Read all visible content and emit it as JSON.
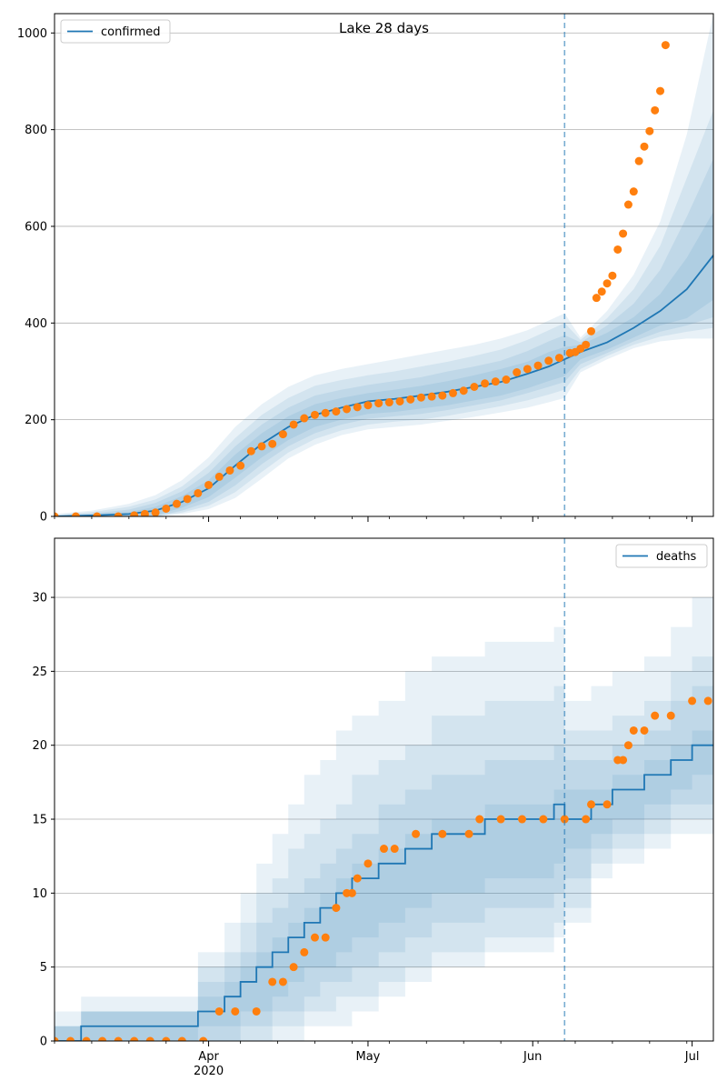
{
  "chart_data": [
    {
      "type": "line",
      "title": "Lake 28 days",
      "xlabel": "",
      "ylabel": "",
      "x_range": [
        "2020-03-03",
        "2020-07-05"
      ],
      "ylim": [
        0,
        1040
      ],
      "y_ticks": [
        0,
        200,
        400,
        600,
        800,
        1000
      ],
      "x_ticks": [
        {
          "date": "2020-04-01",
          "label": "Apr",
          "sublabel": "2020"
        },
        {
          "date": "2020-05-01",
          "label": "May",
          "sublabel": ""
        },
        {
          "date": "2020-06-01",
          "label": "Jun",
          "sublabel": ""
        },
        {
          "date": "2020-07-01",
          "label": "Jul",
          "sublabel": ""
        }
      ],
      "grid": "horizontal",
      "legend": "top-left",
      "colors": {
        "model": "#1f77b4",
        "observed": "#ff7f0e"
      },
      "forecast_start": "2020-06-07",
      "model": {
        "name": "confirmed",
        "dates": [
          "2020-03-03",
          "2020-03-10",
          "2020-03-17",
          "2020-03-22",
          "2020-03-27",
          "2020-04-01",
          "2020-04-06",
          "2020-04-11",
          "2020-04-16",
          "2020-04-21",
          "2020-04-26",
          "2020-05-01",
          "2020-05-06",
          "2020-05-11",
          "2020-05-16",
          "2020-05-21",
          "2020-05-26",
          "2020-05-31",
          "2020-06-04",
          "2020-06-07",
          "2020-06-10",
          "2020-06-15",
          "2020-06-20",
          "2020-06-25",
          "2020-06-30",
          "2020-07-05"
        ],
        "values": [
          0,
          2,
          5,
          12,
          30,
          58,
          105,
          150,
          185,
          210,
          225,
          238,
          243,
          250,
          258,
          268,
          278,
          295,
          310,
          325,
          340,
          360,
          390,
          425,
          470,
          540
        ],
        "bands": [
          {
            "lower": [
              0,
              0,
              0,
              2,
              18,
              40,
              80,
              122,
              158,
              185,
              200,
              212,
              216,
              223,
              230,
              240,
              250,
              265,
              280,
              290,
              325,
              345,
              370,
              395,
              410,
              448
            ],
            "upper": [
              1,
              4,
              9,
              20,
              42,
              75,
              128,
              172,
              207,
              232,
              245,
              255,
              262,
              270,
              280,
              292,
              305,
              320,
              340,
              350,
              355,
              380,
              412,
              460,
              535,
              630
            ]
          },
          {
            "lower": [
              0,
              0,
              0,
              0,
              12,
              30,
              64,
              108,
              145,
              172,
              190,
              202,
              207,
              212,
              220,
              230,
              240,
              255,
              268,
              278,
              315,
              338,
              362,
              382,
              395,
              412
            ],
            "upper": [
              2,
              6,
              14,
              28,
              52,
              90,
              145,
              190,
              225,
              250,
              262,
              272,
              280,
              288,
              300,
              310,
              322,
              342,
              362,
              375,
              360,
              395,
              440,
              510,
              620,
              740
            ]
          },
          {
            "lower": [
              0,
              0,
              0,
              0,
              8,
              22,
              50,
              92,
              132,
              160,
              178,
              190,
              196,
              200,
              208,
              218,
              228,
              240,
              252,
              262,
              305,
              332,
              355,
              372,
              382,
              390
            ],
            "upper": [
              3,
              9,
              20,
              35,
              62,
              105,
              162,
              210,
              245,
              270,
              282,
              292,
              300,
              310,
              320,
              332,
              345,
              365,
              385,
              400,
              365,
              410,
              470,
              560,
              700,
              840
            ]
          },
          {
            "lower": [
              0,
              0,
              0,
              0,
              5,
              15,
              38,
              78,
              120,
              148,
              168,
              180,
              185,
              190,
              198,
              206,
              215,
              225,
              236,
              245,
              298,
              325,
              348,
              362,
              368,
              368
            ],
            "upper": [
              5,
              12,
              26,
              44,
              75,
              122,
              185,
              232,
              268,
              292,
              305,
              315,
              325,
              335,
              345,
              355,
              368,
              385,
              405,
              420,
              370,
              425,
              500,
              610,
              790,
              1040
            ]
          }
        ]
      },
      "observed": {
        "dates": [
          "2020-03-03",
          "2020-03-07",
          "2020-03-11",
          "2020-03-15",
          "2020-03-18",
          "2020-03-20",
          "2020-03-22",
          "2020-03-24",
          "2020-03-26",
          "2020-03-28",
          "2020-03-30",
          "2020-04-01",
          "2020-04-03",
          "2020-04-05",
          "2020-04-07",
          "2020-04-09",
          "2020-04-11",
          "2020-04-13",
          "2020-04-15",
          "2020-04-17",
          "2020-04-19",
          "2020-04-21",
          "2020-04-23",
          "2020-04-25",
          "2020-04-27",
          "2020-04-29",
          "2020-05-01",
          "2020-05-03",
          "2020-05-05",
          "2020-05-07",
          "2020-05-09",
          "2020-05-11",
          "2020-05-13",
          "2020-05-15",
          "2020-05-17",
          "2020-05-19",
          "2020-05-21",
          "2020-05-23",
          "2020-05-25",
          "2020-05-27",
          "2020-05-29",
          "2020-05-31",
          "2020-06-02",
          "2020-06-04",
          "2020-06-06",
          "2020-06-08",
          "2020-06-09",
          "2020-06-10",
          "2020-06-11",
          "2020-06-12",
          "2020-06-13",
          "2020-06-14",
          "2020-06-15",
          "2020-06-16",
          "2020-06-17",
          "2020-06-18",
          "2020-06-19",
          "2020-06-20",
          "2020-06-21",
          "2020-06-22",
          "2020-06-23",
          "2020-06-24",
          "2020-06-25",
          "2020-06-26"
        ],
        "values": [
          0,
          0,
          0,
          0,
          2,
          5,
          8,
          16,
          26,
          36,
          48,
          65,
          82,
          95,
          105,
          135,
          145,
          150,
          170,
          190,
          203,
          210,
          214,
          217,
          222,
          226,
          230,
          234,
          236,
          238,
          242,
          246,
          248,
          250,
          255,
          260,
          268,
          275,
          279,
          283,
          298,
          305,
          312,
          322,
          328,
          338,
          340,
          347,
          355,
          383,
          452,
          465,
          482,
          498,
          552,
          585,
          645,
          672,
          735,
          765,
          797,
          840,
          880,
          975
        ]
      }
    },
    {
      "type": "line",
      "title": "",
      "xlabel": "",
      "ylabel": "",
      "x_range": [
        "2020-03-03",
        "2020-07-05"
      ],
      "ylim": [
        0,
        34
      ],
      "y_ticks": [
        0,
        5,
        10,
        15,
        20,
        25,
        30
      ],
      "x_ticks": [
        {
          "date": "2020-04-01",
          "label": "Apr",
          "sublabel": "2020"
        },
        {
          "date": "2020-05-01",
          "label": "May",
          "sublabel": ""
        },
        {
          "date": "2020-06-01",
          "label": "Jun",
          "sublabel": ""
        },
        {
          "date": "2020-07-01",
          "label": "Jul",
          "sublabel": ""
        }
      ],
      "grid": "horizontal",
      "legend": "top-right",
      "colors": {
        "model": "#1f77b4",
        "observed": "#ff7f0e"
      },
      "forecast_start": "2020-06-07",
      "model": {
        "name": "deaths",
        "dates": [
          "2020-03-03",
          "2020-03-08",
          "2020-03-30",
          "2020-04-04",
          "2020-04-07",
          "2020-04-10",
          "2020-04-13",
          "2020-04-16",
          "2020-04-19",
          "2020-04-22",
          "2020-04-25",
          "2020-04-28",
          "2020-05-03",
          "2020-05-08",
          "2020-05-13",
          "2020-05-23",
          "2020-06-05",
          "2020-06-07",
          "2020-06-12",
          "2020-06-16",
          "2020-06-22",
          "2020-06-27",
          "2020-07-01",
          "2020-07-05"
        ],
        "values": [
          0,
          1,
          2,
          3,
          4,
          5,
          6,
          7,
          8,
          9,
          10,
          11,
          12,
          13,
          14,
          15,
          16,
          15,
          16,
          17,
          18,
          19,
          20,
          20
        ],
        "bands": [
          {
            "lower": [
              0,
              0,
              1,
              1,
              2,
              2,
              3,
              4,
              5,
              5,
              6,
              7,
              8,
              9,
              10,
              11,
              12,
              13,
              14,
              15,
              16,
              17,
              18,
              18
            ],
            "upper": [
              1,
              2,
              3,
              4,
              5,
              6,
              7,
              8,
              9,
              10,
              11,
              12,
              13,
              14,
              15,
              16,
              17,
              17,
              17,
              18,
              19,
              20,
              21,
              22
            ]
          },
          {
            "lower": [
              0,
              0,
              0,
              0,
              1,
              1,
              2,
              2,
              3,
              4,
              4,
              5,
              6,
              7,
              8,
              9,
              10,
              11,
              13,
              14,
              15,
              16,
              16,
              16
            ],
            "upper": [
              1,
              2,
              4,
              5,
              6,
              8,
              9,
              10,
              11,
              12,
              13,
              14,
              16,
              17,
              18,
              19,
              20,
              19,
              19,
              20,
              21,
              23,
              24,
              25
            ]
          },
          {
            "lower": [
              0,
              0,
              0,
              0,
              0,
              0,
              1,
              1,
              2,
              2,
              3,
              3,
              4,
              5,
              6,
              7,
              8,
              9,
              12,
              13,
              14,
              15,
              15,
              16
            ],
            "upper": [
              1,
              2,
              5,
              6,
              8,
              10,
              11,
              13,
              14,
              15,
              16,
              18,
              19,
              20,
              22,
              23,
              24,
              21,
              21,
              22,
              23,
              25,
              26,
              28
            ]
          },
          {
            "lower": [
              0,
              0,
              0,
              0,
              0,
              0,
              0,
              0,
              1,
              1,
              1,
              2,
              3,
              4,
              5,
              6,
              7,
              8,
              11,
              12,
              13,
              14,
              14,
              15
            ],
            "upper": [
              2,
              3,
              6,
              8,
              10,
              12,
              14,
              16,
              18,
              19,
              21,
              22,
              23,
              25,
              26,
              27,
              28,
              23,
              24,
              25,
              26,
              28,
              30,
              34
            ]
          }
        ]
      },
      "observed": {
        "dates": [
          "2020-03-03",
          "2020-03-06",
          "2020-03-09",
          "2020-03-12",
          "2020-03-15",
          "2020-03-18",
          "2020-03-21",
          "2020-03-24",
          "2020-03-27",
          "2020-03-31",
          "2020-04-03",
          "2020-04-06",
          "2020-04-10",
          "2020-04-13",
          "2020-04-15",
          "2020-04-17",
          "2020-04-19",
          "2020-04-21",
          "2020-04-23",
          "2020-04-25",
          "2020-04-27",
          "2020-04-28",
          "2020-04-29",
          "2020-05-01",
          "2020-05-04",
          "2020-05-06",
          "2020-05-10",
          "2020-05-15",
          "2020-05-20",
          "2020-05-22",
          "2020-05-26",
          "2020-05-30",
          "2020-06-03",
          "2020-06-07",
          "2020-06-11",
          "2020-06-12",
          "2020-06-15",
          "2020-06-17",
          "2020-06-18",
          "2020-06-19",
          "2020-06-20",
          "2020-06-22",
          "2020-06-24",
          "2020-06-27",
          "2020-07-01",
          "2020-07-04"
        ],
        "values": [
          0,
          0,
          0,
          0,
          0,
          0,
          0,
          0,
          0,
          0,
          2,
          2,
          2,
          4,
          4,
          5,
          6,
          7,
          7,
          9,
          10,
          10,
          11,
          12,
          13,
          13,
          14,
          14,
          14,
          15,
          15,
          15,
          15,
          15,
          15,
          16,
          16,
          19,
          19,
          20,
          21,
          21,
          22,
          22,
          23,
          23
        ]
      }
    }
  ]
}
